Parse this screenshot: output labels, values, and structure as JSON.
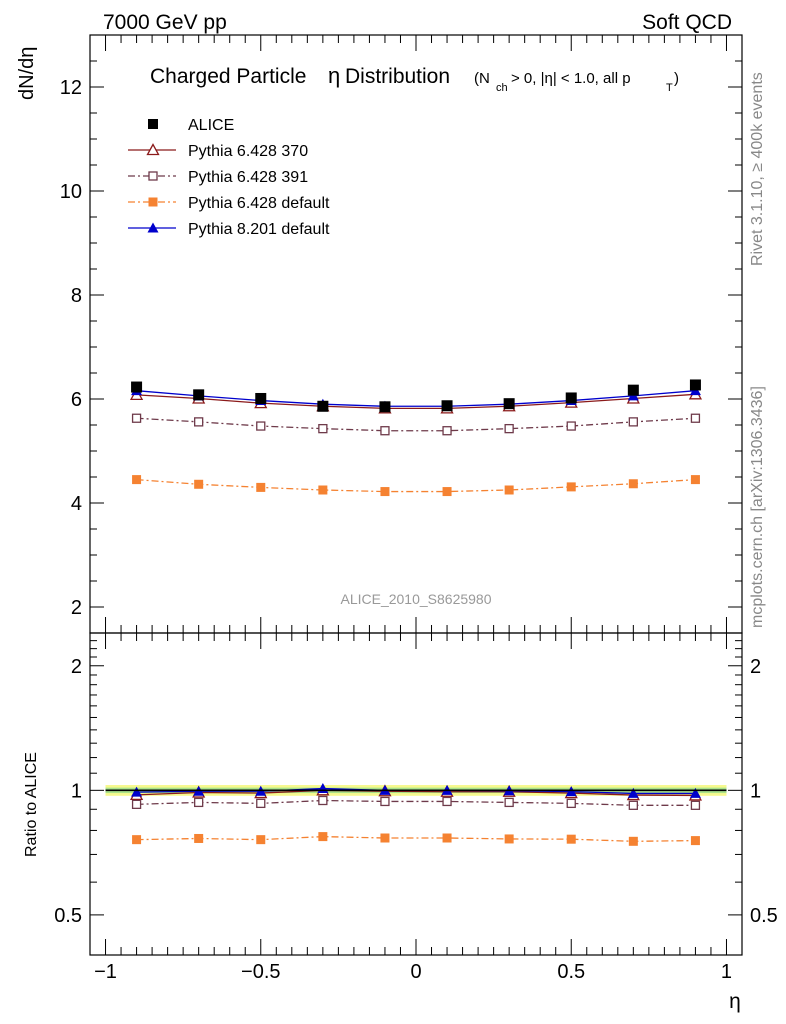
{
  "header": {
    "left": "7000 GeV pp",
    "right": "Soft QCD"
  },
  "side": {
    "rivet": "Rivet 3.1.10, ≥ 400k events",
    "mcplots": "mcplots.cern.ch [arXiv:1306.3436]"
  },
  "chart_data": {
    "type": "line",
    "title_main": "Charged Particle",
    "title_eta": "η",
    "title_rest": "Distribution",
    "title_sub_pre": "(N",
    "title_sub_ch": "ch",
    "title_sub_mid": " > 0, |η| < 1.0, all p",
    "title_sub_T": "T",
    "title_sub_post": ")",
    "watermark": "ALICE_2010_S8625980",
    "ylabel": "dN/dη",
    "ratio_ylabel": "Ratio to ALICE",
    "xlabel": "η",
    "xlim": [
      -1.05,
      1.05
    ],
    "ylim": [
      1.5,
      13
    ],
    "ratio_ylim": [
      0.4,
      2.4
    ],
    "x": [
      -0.9,
      -0.7,
      -0.5,
      -0.3,
      -0.1,
      0.1,
      0.3,
      0.5,
      0.7,
      0.9
    ],
    "x_ticks": [
      -1,
      -0.5,
      0,
      0.5,
      1
    ],
    "x_tick_labels": [
      "−1",
      "−0.5",
      "0",
      "0.5",
      "1"
    ],
    "y_ticks": [
      2,
      4,
      6,
      8,
      10,
      12
    ],
    "y_tick_labels": [
      "2",
      "4",
      "6",
      "8",
      "10",
      "12"
    ],
    "ratio_y_ticks": [
      0.5,
      1,
      2
    ],
    "ratio_y_tick_labels": [
      "0.5",
      "1",
      "2"
    ],
    "reference_band": {
      "inner": [
        0.985,
        1.015
      ],
      "outer": [
        0.97,
        1.03
      ]
    },
    "series": [
      {
        "name": "ALICE",
        "key": "alice",
        "color": "#000000",
        "marker": "square-filled",
        "dash": "none",
        "line": false,
        "values": [
          6.23,
          6.08,
          6.01,
          5.86,
          5.85,
          5.87,
          5.91,
          6.02,
          6.17,
          6.27
        ],
        "ratio": [
          1,
          1,
          1,
          1,
          1,
          1,
          1,
          1,
          1,
          1
        ]
      },
      {
        "name": "Pythia 6.428 370",
        "key": "p370",
        "color": "#8b1a1a",
        "marker": "triangle-open",
        "dash": "none",
        "line": true,
        "values": [
          6.08,
          6.01,
          5.92,
          5.86,
          5.82,
          5.82,
          5.86,
          5.93,
          6.01,
          6.09
        ],
        "ratio": [
          0.975,
          0.988,
          0.985,
          1.0,
          0.995,
          0.992,
          0.992,
          0.985,
          0.974,
          0.972
        ]
      },
      {
        "name": "Pythia 6.428 391",
        "key": "p391",
        "color": "#6e3a4a",
        "marker": "square-open",
        "dash": "dashdot",
        "line": true,
        "values": [
          5.63,
          5.56,
          5.48,
          5.43,
          5.39,
          5.39,
          5.43,
          5.48,
          5.56,
          5.63
        ],
        "ratio": [
          0.925,
          0.935,
          0.93,
          0.945,
          0.94,
          0.94,
          0.935,
          0.93,
          0.92,
          0.92
        ]
      },
      {
        "name": "Pythia 6.428 default",
        "key": "p6def",
        "color": "#f58231",
        "marker": "square-filled",
        "dash": "dashdot",
        "line": true,
        "values": [
          4.45,
          4.36,
          4.3,
          4.25,
          4.22,
          4.22,
          4.25,
          4.31,
          4.37,
          4.45
        ],
        "ratio": [
          0.76,
          0.765,
          0.76,
          0.773,
          0.767,
          0.767,
          0.763,
          0.762,
          0.753,
          0.756
        ]
      },
      {
        "name": "Pythia 8.201 default",
        "key": "p8def",
        "color": "#0000cc",
        "marker": "triangle-filled",
        "dash": "none",
        "line": true,
        "values": [
          6.16,
          6.06,
          5.97,
          5.9,
          5.86,
          5.86,
          5.9,
          5.97,
          6.06,
          6.16
        ],
        "ratio": [
          0.99,
          0.995,
          0.995,
          1.01,
          1.0,
          1.0,
          0.998,
          0.993,
          0.983,
          0.983
        ]
      }
    ]
  }
}
